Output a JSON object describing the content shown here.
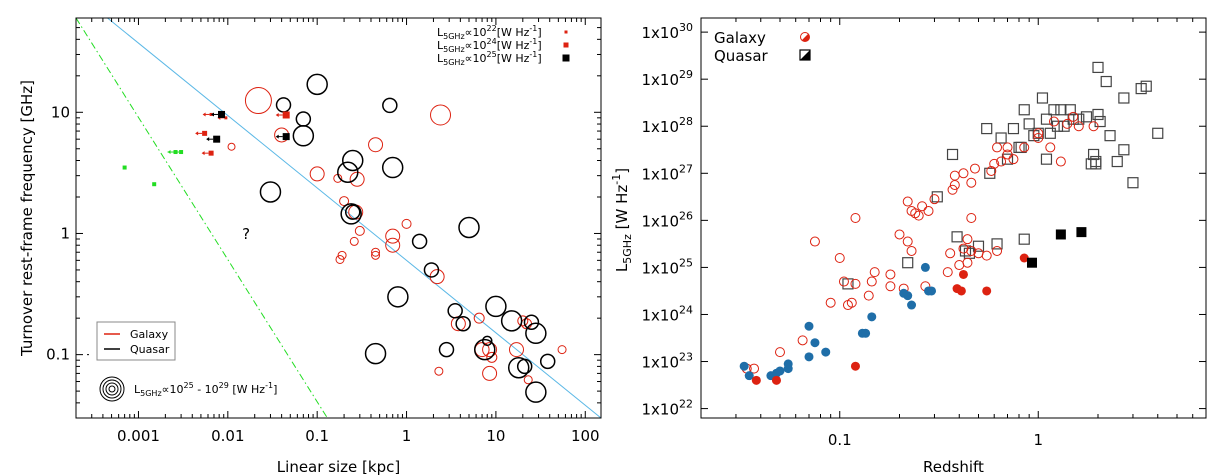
{
  "chart_data": [
    {
      "type": "scatter",
      "xlabel": "Linear size [kpc]",
      "ylabel": "Turnover rest-frame frequency [GHz]",
      "x_scale": "log",
      "y_scale": "log",
      "xlim": [
        0.0002,
        150
      ],
      "ylim": [
        0.03,
        60
      ],
      "x_ticks": [
        "0.001",
        "0.01",
        "0.1",
        "1",
        "10",
        "100"
      ],
      "x_tick_values": [
        0.001,
        0.01,
        0.1,
        1,
        10,
        100
      ],
      "y_ticks": [
        "0.1",
        "1",
        "10"
      ],
      "y_tick_values": [
        0.1,
        1,
        10
      ],
      "question_mark": "?",
      "legend_class": {
        "galaxy": "Galaxy",
        "quasar": "Quasar"
      },
      "legend_lum_top": [
        {
          "text": "L5GHz∝10^22[W Hz^-1]",
          "pre": "L",
          "sub": "5GHz",
          "mid": "∝10",
          "sup": "22",
          "post": "[W Hz",
          "sup2": "-1",
          "end": "]"
        },
        {
          "text": "L5GHz∝10^24[W Hz^-1]",
          "pre": "L",
          "sub": "5GHz",
          "mid": "∝10",
          "sup": "24",
          "post": "[W Hz",
          "sup2": "-1",
          "end": "]"
        },
        {
          "text": "L5GHz∝10^25[W Hz^-1]",
          "pre": "L",
          "sub": "5GHz",
          "mid": "∝10",
          "sup": "25",
          "post": "[W Hz",
          "sup2": "-1",
          "end": "]"
        }
      ],
      "legend_lum_circles": {
        "pre": "L",
        "sub": "5GHz",
        "mid": "∝10",
        "sup": "25",
        "mid2": " - 10",
        "sup2": "29",
        "post": " [W Hz",
        "sup3": "-1",
        "end": "]"
      },
      "colors": {
        "galaxy": "#dd2211",
        "quasar": "#000000",
        "green": "#22dd22",
        "blue_line": "#5bb8e6"
      },
      "lines": [
        {
          "name": "",
          "style": "solid",
          "color": "#5bb8e6",
          "points": [
            [
              0.00045,
              60
            ],
            [
              150,
              0.03
            ]
          ]
        },
        {
          "name": "",
          "style": "dashdot",
          "color": "#22dd22",
          "points": [
            [
              0.0002,
              60
            ],
            [
              0.13,
              0.03
            ]
          ]
        }
      ],
      "green_points": [
        [
          0.0007,
          3.5
        ],
        [
          0.0015,
          2.55
        ],
        [
          0.0026,
          4.7
        ],
        [
          0.003,
          4.7
        ]
      ],
      "green_arrows": [
        [
          0.0026,
          4.7
        ],
        [
          0.003,
          4.7
        ]
      ],
      "small_squares": [
        {
          "x": 0.0065,
          "y": 9.6,
          "c": "galaxy",
          "s": 3,
          "arrow": true
        },
        {
          "x": 0.0095,
          "y": 9.0,
          "c": "galaxy",
          "s": 3,
          "arrow": true
        },
        {
          "x": 0.0055,
          "y": 6.7,
          "c": "galaxy",
          "s": 5,
          "arrow": true
        },
        {
          "x": 0.0065,
          "y": 4.6,
          "c": "galaxy",
          "s": 5,
          "arrow": true
        },
        {
          "x": 0.0085,
          "y": 9.6,
          "c": "quasar",
          "s": 7,
          "arrow": true
        },
        {
          "x": 0.0075,
          "y": 6.0,
          "c": "quasar",
          "s": 7,
          "arrow": true
        },
        {
          "x": 0.045,
          "y": 9.5,
          "c": "galaxy",
          "s": 7,
          "arrow": true
        },
        {
          "x": 0.045,
          "y": 6.3,
          "c": "quasar",
          "s": 7,
          "arrow": true
        }
      ],
      "galaxy_circles": [
        [
          0.011,
          5.2,
          3.5
        ],
        [
          0.022,
          12.5,
          13
        ],
        [
          0.04,
          6.5,
          7
        ],
        [
          0.1,
          3.1,
          7
        ],
        [
          0.17,
          2.85,
          4
        ],
        [
          0.28,
          2.8,
          7
        ],
        [
          0.27,
          1.5,
          7
        ],
        [
          0.3,
          1.05,
          4.5
        ],
        [
          0.2,
          1.85,
          4.5
        ],
        [
          0.26,
          0.86,
          4
        ],
        [
          0.19,
          0.66,
          4
        ],
        [
          0.18,
          0.61,
          4
        ],
        [
          0.45,
          5.4,
          7
        ],
        [
          0.45,
          0.7,
          4
        ],
        [
          0.45,
          0.66,
          4
        ],
        [
          0.7,
          0.95,
          7
        ],
        [
          0.7,
          0.8,
          7
        ],
        [
          1.0,
          1.2,
          4.5
        ],
        [
          2.4,
          9.5,
          10
        ],
        [
          2.2,
          0.44,
          7
        ],
        [
          2.3,
          0.073,
          4
        ],
        [
          3.8,
          0.18,
          7
        ],
        [
          6.5,
          0.2,
          5
        ],
        [
          7,
          0.11,
          7
        ],
        [
          8.5,
          0.11,
          7
        ],
        [
          9,
          0.095,
          5
        ],
        [
          8.5,
          0.07,
          7
        ],
        [
          17,
          0.11,
          7
        ],
        [
          20,
          0.19,
          5
        ],
        [
          23,
          0.062,
          4
        ],
        [
          22,
          0.18,
          5
        ],
        [
          55,
          0.11,
          4
        ]
      ],
      "quasar_circles": [
        [
          0.042,
          11.5,
          7
        ],
        [
          0.1,
          17,
          10
        ],
        [
          0.07,
          8.8,
          7
        ],
        [
          0.07,
          6.4,
          10
        ],
        [
          0.03,
          2.2,
          10
        ],
        [
          0.25,
          4.0,
          10
        ],
        [
          0.22,
          3.2,
          10
        ],
        [
          0.24,
          1.45,
          10
        ],
        [
          0.25,
          1.5,
          7
        ],
        [
          0.65,
          11.4,
          7
        ],
        [
          0.7,
          3.5,
          10
        ],
        [
          1.4,
          0.86,
          7
        ],
        [
          1.9,
          0.5,
          7
        ],
        [
          0.8,
          0.3,
          10
        ],
        [
          0.45,
          0.102,
          10
        ],
        [
          2.8,
          0.11,
          7
        ],
        [
          3.5,
          0.23,
          7
        ],
        [
          4.3,
          0.18,
          7
        ],
        [
          5,
          1.12,
          10
        ],
        [
          7.5,
          0.11,
          10
        ],
        [
          8,
          0.13,
          4.5
        ],
        [
          10,
          0.25,
          10
        ],
        [
          15,
          0.19,
          10
        ],
        [
          25,
          0.185,
          7
        ],
        [
          28,
          0.15,
          10
        ],
        [
          18,
          0.078,
          10
        ],
        [
          21,
          0.08,
          7
        ],
        [
          28,
          0.049,
          10
        ],
        [
          38,
          0.088,
          7
        ]
      ]
    },
    {
      "type": "scatter",
      "xlabel": "Redshift",
      "ylabel": "L5GHz [W Hz-1]",
      "ylabel_parts": {
        "pre": "L",
        "sub": "5GHz",
        "post": " [W Hz",
        "sup": "-1",
        "end": "]"
      },
      "x_scale": "log",
      "y_scale": "log",
      "xlim": [
        0.02,
        7
      ],
      "ylim_exp": [
        21.8,
        30.3
      ],
      "x_ticks": [
        "0.1",
        "1"
      ],
      "x_tick_values": [
        0.1,
        1
      ],
      "y_ticks": [
        {
          "base": "1x10",
          "exp": "22",
          "v": 22
        },
        {
          "base": "1x10",
          "exp": "23",
          "v": 23
        },
        {
          "base": "1x10",
          "exp": "24",
          "v": 24
        },
        {
          "base": "1x10",
          "exp": "25",
          "v": 25
        },
        {
          "base": "1x10",
          "exp": "26",
          "v": 26
        },
        {
          "base": "1x10",
          "exp": "27",
          "v": 27
        },
        {
          "base": "1x10",
          "exp": "28",
          "v": 28
        },
        {
          "base": "1x10",
          "exp": "29",
          "v": 29
        },
        {
          "base": "1x10",
          "exp": "30",
          "v": 30
        }
      ],
      "legend": [
        {
          "label": "Galaxy",
          "marker": "circle-half"
        },
        {
          "label": "Quasar",
          "marker": "square-half"
        }
      ],
      "colors": {
        "galaxy": "#dd2211",
        "quasar": "#000000",
        "blue": "#1f6ea8",
        "gray": "#444444"
      },
      "galaxy_open": [
        [
          0.037,
          22.85
        ],
        [
          0.05,
          23.2
        ],
        [
          0.065,
          23.45
        ],
        [
          0.075,
          25.55
        ],
        [
          0.09,
          24.25
        ],
        [
          0.1,
          25.2
        ],
        [
          0.105,
          24.7
        ],
        [
          0.11,
          24.2
        ],
        [
          0.115,
          24.25
        ],
        [
          0.12,
          24.65
        ],
        [
          0.12,
          26.05
        ],
        [
          0.14,
          24.4
        ],
        [
          0.145,
          24.7
        ],
        [
          0.15,
          24.9
        ],
        [
          0.18,
          24.6
        ],
        [
          0.18,
          24.85
        ],
        [
          0.2,
          25.7
        ],
        [
          0.21,
          24.55
        ],
        [
          0.22,
          25.55
        ],
        [
          0.22,
          26.4
        ],
        [
          0.23,
          26.2
        ],
        [
          0.23,
          25.35
        ],
        [
          0.24,
          26.15
        ],
        [
          0.25,
          26.1
        ],
        [
          0.26,
          26.3
        ],
        [
          0.27,
          24.6
        ],
        [
          0.28,
          26.2
        ],
        [
          0.3,
          26.45
        ],
        [
          0.35,
          24.9
        ],
        [
          0.36,
          25.3
        ],
        [
          0.37,
          26.65
        ],
        [
          0.38,
          26.75
        ],
        [
          0.38,
          26.95
        ],
        [
          0.4,
          25.05
        ],
        [
          0.42,
          25.4
        ],
        [
          0.42,
          27.0
        ],
        [
          0.44,
          25.6
        ],
        [
          0.44,
          25.1
        ],
        [
          0.46,
          25.35
        ],
        [
          0.46,
          26.8
        ],
        [
          0.46,
          26.05
        ],
        [
          0.48,
          27.1
        ],
        [
          0.5,
          25.3
        ],
        [
          0.55,
          25.25
        ],
        [
          0.58,
          27.05
        ],
        [
          0.6,
          27.2
        ],
        [
          0.62,
          27.55
        ],
        [
          0.62,
          25.35
        ],
        [
          0.65,
          27.25
        ],
        [
          0.7,
          27.4
        ],
        [
          0.7,
          27.55
        ],
        [
          0.75,
          27.3
        ],
        [
          0.85,
          27.55
        ],
        [
          1.0,
          27.75
        ],
        [
          1.0,
          27.85
        ],
        [
          1.15,
          27.55
        ],
        [
          1.2,
          28.1
        ],
        [
          1.3,
          27.25
        ],
        [
          1.4,
          28.05
        ],
        [
          1.5,
          28.2
        ],
        [
          1.6,
          28.0
        ],
        [
          1.9,
          28.0
        ],
        [
          0.034,
          22.85
        ]
      ],
      "galaxy_filled": [
        [
          0.038,
          22.6
        ],
        [
          0.048,
          22.6
        ],
        [
          0.12,
          22.9
        ],
        [
          0.39,
          24.55
        ],
        [
          0.41,
          24.5
        ],
        [
          0.42,
          24.85
        ],
        [
          0.55,
          24.5
        ],
        [
          0.85,
          25.2
        ]
      ],
      "blue_filled": [
        [
          0.033,
          22.9
        ],
        [
          0.035,
          22.7
        ],
        [
          0.045,
          22.7
        ],
        [
          0.048,
          22.75
        ],
        [
          0.05,
          22.8
        ],
        [
          0.055,
          22.85
        ],
        [
          0.055,
          22.95
        ],
        [
          0.07,
          23.1
        ],
        [
          0.07,
          23.75
        ],
        [
          0.075,
          23.4
        ],
        [
          0.085,
          23.2
        ],
        [
          0.13,
          23.6
        ],
        [
          0.135,
          23.6
        ],
        [
          0.145,
          23.95
        ],
        [
          0.21,
          24.45
        ],
        [
          0.22,
          24.4
        ],
        [
          0.23,
          24.2
        ],
        [
          0.27,
          25.0
        ],
        [
          0.28,
          24.5
        ],
        [
          0.29,
          24.5
        ]
      ],
      "quasar_open": [
        [
          0.11,
          24.65
        ],
        [
          0.22,
          25.1
        ],
        [
          0.31,
          26.5
        ],
        [
          0.37,
          27.4
        ],
        [
          0.39,
          25.65
        ],
        [
          0.43,
          25.35
        ],
        [
          0.45,
          25.3
        ],
        [
          0.5,
          25.45
        ],
        [
          0.55,
          27.95
        ],
        [
          0.57,
          27.0
        ],
        [
          0.62,
          25.5
        ],
        [
          0.65,
          27.75
        ],
        [
          0.7,
          27.3
        ],
        [
          0.75,
          27.95
        ],
        [
          0.8,
          27.55
        ],
        [
          0.82,
          27.55
        ],
        [
          0.85,
          28.35
        ],
        [
          0.85,
          25.6
        ],
        [
          0.9,
          28.05
        ],
        [
          0.95,
          27.8
        ],
        [
          1.0,
          27.85
        ],
        [
          1.05,
          28.6
        ],
        [
          1.1,
          28.15
        ],
        [
          1.1,
          27.3
        ],
        [
          1.15,
          27.85
        ],
        [
          1.2,
          28.35
        ],
        [
          1.25,
          28.0
        ],
        [
          1.3,
          28.35
        ],
        [
          1.35,
          28.0
        ],
        [
          1.45,
          28.35
        ],
        [
          1.5,
          28.15
        ],
        [
          1.6,
          28.15
        ],
        [
          1.75,
          28.2
        ],
        [
          1.85,
          27.2
        ],
        [
          1.9,
          27.4
        ],
        [
          1.95,
          27.25
        ],
        [
          2.0,
          28.25
        ],
        [
          2.0,
          29.25
        ],
        [
          2.2,
          28.95
        ],
        [
          2.3,
          27.8
        ],
        [
          2.5,
          27.25
        ],
        [
          2.7,
          27.5
        ],
        [
          2.7,
          28.6
        ],
        [
          3.0,
          26.8
        ],
        [
          3.3,
          28.8
        ],
        [
          3.5,
          28.85
        ],
        [
          4.0,
          27.85
        ],
        [
          2.05,
          28.1
        ],
        [
          1.95,
          27.2
        ]
      ],
      "quasar_filled": [
        [
          0.93,
          25.1
        ],
        [
          1.3,
          25.7
        ],
        [
          1.65,
          25.75
        ]
      ]
    }
  ]
}
